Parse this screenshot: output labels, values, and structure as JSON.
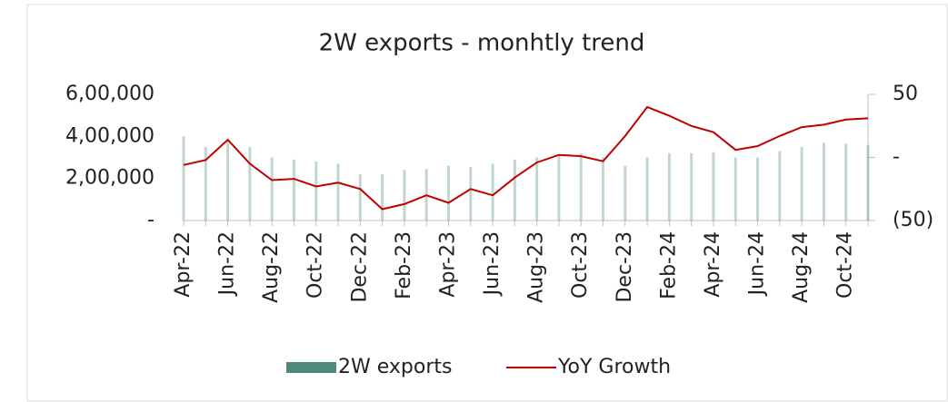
{
  "chart_data": {
    "type": "bar_line",
    "title": "2W exports - monhtly trend",
    "categories": [
      "Apr-22",
      null,
      "Jun-22",
      null,
      "Aug-22",
      null,
      "Oct-22",
      null,
      "Dec-22",
      null,
      "Feb-23",
      null,
      "Apr-23",
      null,
      "Jun-23",
      null,
      "Aug-23",
      null,
      "Oct-23",
      null,
      "Dec-23",
      null,
      "Feb-24",
      null,
      "Apr-24",
      null,
      "Jun-24",
      null,
      "Aug-24",
      null,
      "Oct-24",
      null
    ],
    "series": [
      {
        "name": "2W exports",
        "color": "#4e8a7c",
        "type": "bar",
        "values": [
          400000,
          350000,
          380000,
          350000,
          300000,
          290000,
          280000,
          270000,
          220000,
          220000,
          240000,
          245000,
          260000,
          255000,
          270000,
          290000,
          300000,
          310000,
          320000,
          300000,
          260000,
          300000,
          320000,
          320000,
          325000,
          300000,
          300000,
          330000,
          350000,
          370000,
          365000,
          360000
        ]
      },
      {
        "name": "YoY Growth",
        "color": "#c00000",
        "type": "line",
        "axis": "y2",
        "values": [
          -6,
          -2,
          14,
          -5,
          -18,
          -17,
          -23,
          -20,
          -25,
          -41,
          -37,
          -30,
          -36,
          -25,
          -30,
          -16,
          -4,
          2,
          1,
          -3,
          17,
          40,
          33,
          25,
          20,
          6,
          9,
          17,
          24,
          26,
          30,
          31
        ]
      }
    ],
    "ylim": [
      0,
      600000
    ],
    "yticks": [
      {
        "value": 0,
        "label": "-"
      },
      {
        "value": 200000,
        "label": "2,00,000"
      },
      {
        "value": 400000,
        "label": "4,00,000"
      },
      {
        "value": 600000,
        "label": "6,00,000"
      }
    ],
    "y2lim": [
      -50,
      50
    ],
    "y2ticks": [
      {
        "value": -50,
        "label": "(50)"
      },
      {
        "value": 0,
        "label": "-"
      },
      50
    ],
    "legend": "bottom"
  }
}
